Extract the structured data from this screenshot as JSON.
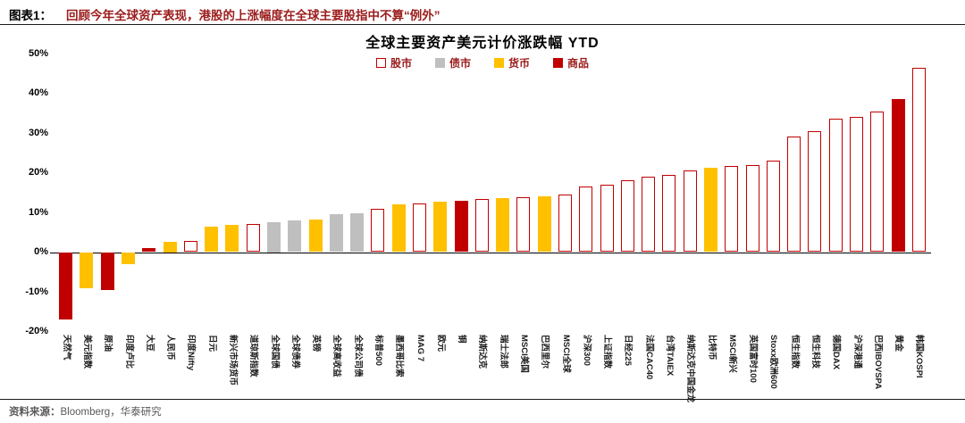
{
  "header": {
    "label": "图表1：",
    "caption": "回顾今年全球资产表现，港股的上涨幅度在全球主要股指中不算“例外”"
  },
  "footer": {
    "source_label": "资料来源：",
    "source_text": "Bloomberg，华泰研究"
  },
  "chart_data": {
    "type": "bar",
    "title": "全球主要资产美元计价涨跌幅 YTD",
    "xlabel": "",
    "ylabel": "",
    "ylim": [
      -20,
      50
    ],
    "yticks": [
      -20,
      -10,
      0,
      10,
      20,
      30,
      40,
      50
    ],
    "grid": false,
    "legend_position": "top-center",
    "colors": {
      "stock_border": "#C00000",
      "stock_fill": "#FFFFFF",
      "bond": "#BFBFBF",
      "currency": "#FFC000",
      "commodity": "#C00000",
      "caption_red": "#9B1C1C"
    },
    "legend": [
      {
        "label": "股市",
        "category": "stock"
      },
      {
        "label": "债市",
        "category": "bond"
      },
      {
        "label": "货币",
        "category": "currency"
      },
      {
        "label": "商品",
        "category": "commodity"
      }
    ],
    "items": [
      {
        "label": "天然气",
        "category": "commodity",
        "value": -17
      },
      {
        "label": "美元指数",
        "category": "currency",
        "value": -9
      },
      {
        "label": "原油",
        "category": "commodity",
        "value": -9.5
      },
      {
        "label": "印度卢比",
        "category": "currency",
        "value": -3
      },
      {
        "label": "大豆",
        "category": "commodity",
        "value": 1
      },
      {
        "label": "人民币",
        "category": "currency",
        "value": 2.5
      },
      {
        "label": "印度Nifty",
        "category": "stock",
        "value": 2.8
      },
      {
        "label": "日元",
        "category": "currency",
        "value": 6.5
      },
      {
        "label": "新兴市场货币",
        "category": "currency",
        "value": 6.8
      },
      {
        "label": "道琼斯指数",
        "category": "stock",
        "value": 7
      },
      {
        "label": "全球国债",
        "category": "bond",
        "value": 7.5
      },
      {
        "label": "全球债券",
        "category": "bond",
        "value": 8
      },
      {
        "label": "英镑",
        "category": "currency",
        "value": 8.2
      },
      {
        "label": "全球高收益",
        "category": "bond",
        "value": 9.5
      },
      {
        "label": "全球公司债",
        "category": "bond",
        "value": 9.7
      },
      {
        "label": "标普500",
        "category": "stock",
        "value": 10.8
      },
      {
        "label": "墨西哥比索",
        "category": "currency",
        "value": 12
      },
      {
        "label": "MAG 7",
        "category": "stock",
        "value": 12.3
      },
      {
        "label": "欧元",
        "category": "currency",
        "value": 12.8
      },
      {
        "label": "铜",
        "category": "commodity",
        "value": 13
      },
      {
        "label": "纳斯达克",
        "category": "stock",
        "value": 13.3
      },
      {
        "label": "瑞士法郎",
        "category": "currency",
        "value": 13.5
      },
      {
        "label": "MSCI美国",
        "category": "stock",
        "value": 13.8
      },
      {
        "label": "巴西里尔",
        "category": "currency",
        "value": 14
      },
      {
        "label": "MSCI全球",
        "category": "stock",
        "value": 14.5
      },
      {
        "label": "沪深300",
        "category": "stock",
        "value": 16.5
      },
      {
        "label": "上证指数",
        "category": "stock",
        "value": 17
      },
      {
        "label": "日经225",
        "category": "stock",
        "value": 18
      },
      {
        "label": "法国CAC40",
        "category": "stock",
        "value": 19
      },
      {
        "label": "台湾TAIEX",
        "category": "stock",
        "value": 19.5
      },
      {
        "label": "纳斯达克中国金龙",
        "category": "stock",
        "value": 20.5
      },
      {
        "label": "比特币",
        "category": "currency",
        "value": 21.3
      },
      {
        "label": "MSCI新兴",
        "category": "stock",
        "value": 21.7
      },
      {
        "label": "英国富时100",
        "category": "stock",
        "value": 22
      },
      {
        "label": "Stoxx欧洲600",
        "category": "stock",
        "value": 23
      },
      {
        "label": "恒生指数",
        "category": "stock",
        "value": 29
      },
      {
        "label": "恒生科技",
        "category": "stock",
        "value": 30.5
      },
      {
        "label": "德国DAX",
        "category": "stock",
        "value": 33.5
      },
      {
        "label": "沪深港通",
        "category": "stock",
        "value": 34
      },
      {
        "label": "巴西IBOVSPA",
        "category": "stock",
        "value": 35.5
      },
      {
        "label": "黄金",
        "category": "commodity",
        "value": 38.5
      },
      {
        "label": "韩国KOSPI",
        "category": "stock",
        "value": 46.5
      }
    ]
  }
}
